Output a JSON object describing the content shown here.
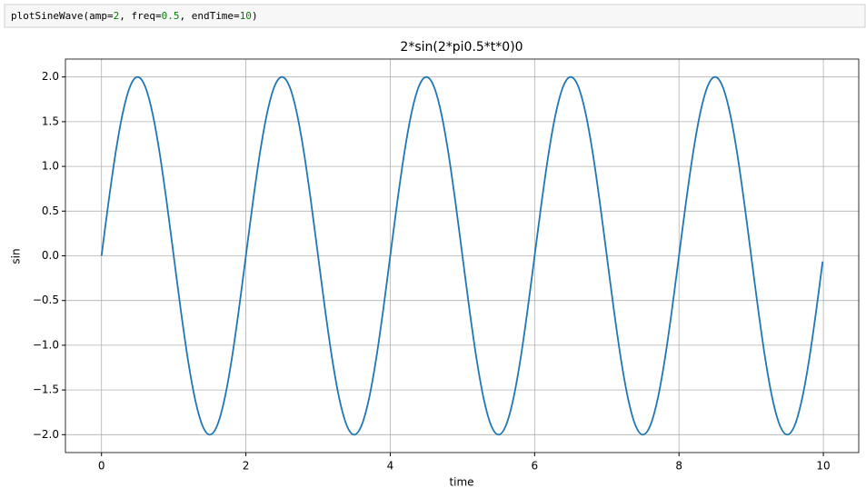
{
  "code_cell": {
    "tokens": [
      {
        "text": "plotSineWave(amp="
      },
      {
        "text": "2",
        "color": "#008000"
      },
      {
        "text": ", freq="
      },
      {
        "text": "0.5",
        "color": "#008000"
      },
      {
        "text": ", endTime="
      },
      {
        "text": "10",
        "color": "#008000"
      },
      {
        "text": ")"
      }
    ]
  },
  "chart_data": {
    "type": "line",
    "title": "2*sin(2*pi0.5*t*0)0",
    "x_label": "time",
    "y_label": "sin",
    "x": [
      0,
      0.1,
      0.2,
      0.3,
      0.4,
      0.5,
      0.6,
      0.7,
      0.8,
      0.9,
      1,
      1.1,
      1.2,
      1.3,
      1.4,
      1.5,
      1.6,
      1.7,
      1.8,
      1.9,
      2,
      2.1,
      2.2,
      2.3,
      2.4,
      2.5,
      2.6,
      2.7,
      2.8,
      2.9,
      3,
      3.1,
      3.2,
      3.3,
      3.4,
      3.5,
      3.6,
      3.7,
      3.8,
      3.9,
      4,
      4.1,
      4.2,
      4.3,
      4.4,
      4.5,
      4.6,
      4.7,
      4.8,
      4.9,
      5,
      5.1,
      5.2,
      5.3,
      5.4,
      5.5,
      5.6,
      5.7,
      5.8,
      5.9,
      6,
      6.1,
      6.2,
      6.3,
      6.4,
      6.5,
      6.6,
      6.7,
      6.8,
      6.9,
      7,
      7.1,
      7.2,
      7.3,
      7.4,
      7.5,
      7.6,
      7.7,
      7.8,
      7.9,
      8,
      8.1,
      8.2,
      8.3,
      8.4,
      8.5,
      8.6,
      8.7,
      8.8,
      8.9,
      9,
      9.1,
      9.2,
      9.3,
      9.4,
      9.5,
      9.6,
      9.7,
      9.8,
      9.9,
      9.99
    ],
    "series": [
      {
        "name": "sin",
        "color": "#1f77b4",
        "values": [
          0,
          0.618,
          1.176,
          1.618,
          1.902,
          2,
          1.902,
          1.618,
          1.176,
          0.618,
          0,
          -0.618,
          -1.176,
          -1.618,
          -1.902,
          -2,
          -1.902,
          -1.618,
          -1.176,
          -0.618,
          0,
          0.618,
          1.176,
          1.618,
          1.902,
          2,
          1.902,
          1.618,
          1.176,
          0.618,
          0,
          -0.618,
          -1.176,
          -1.618,
          -1.902,
          -2,
          -1.902,
          -1.618,
          -1.176,
          -0.618,
          0,
          0.618,
          1.176,
          1.618,
          1.902,
          2,
          1.902,
          1.618,
          1.176,
          0.618,
          0,
          -0.618,
          -1.176,
          -1.618,
          -1.902,
          -2,
          -1.902,
          -1.618,
          -1.176,
          -0.618,
          0,
          0.618,
          1.176,
          1.618,
          1.902,
          2,
          1.902,
          1.618,
          1.176,
          0.618,
          0,
          -0.618,
          -1.176,
          -1.618,
          -1.902,
          -2,
          -1.902,
          -1.618,
          -1.176,
          -0.618,
          0,
          0.618,
          1.176,
          1.618,
          1.902,
          2,
          1.902,
          1.618,
          1.176,
          0.618,
          0,
          -0.618,
          -1.176,
          -1.618,
          -1.902,
          -2,
          -1.902,
          -1.618,
          -1.176,
          -0.618,
          -0.063
        ]
      }
    ],
    "xlim": [
      -0.5,
      10.49
    ],
    "ylim": [
      -2.2,
      2.2
    ],
    "xticks": [
      0,
      2,
      4,
      6,
      8,
      10
    ],
    "yticks": [
      {
        "value": -2,
        "label": "−2.0"
      },
      {
        "value": -1.5,
        "label": "−1.5"
      },
      {
        "value": -1,
        "label": "−1.0"
      },
      {
        "value": -0.5,
        "label": "−0.5"
      },
      {
        "value": 0,
        "label": "0.0"
      },
      {
        "value": 0.5,
        "label": "0.5"
      },
      {
        "value": 1,
        "label": "1.0"
      },
      {
        "value": 1.5,
        "label": "1.5"
      },
      {
        "value": 2,
        "label": "2.0"
      }
    ],
    "grid": true
  }
}
